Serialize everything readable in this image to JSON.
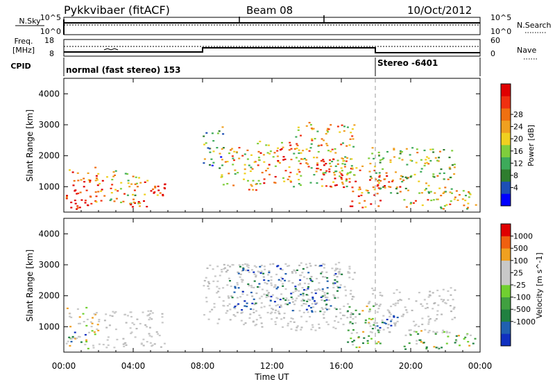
{
  "header": {
    "station": "Pykkvibaer (fitACF)",
    "beam": "Beam 08",
    "date": "10/Oct/2012"
  },
  "strips": {
    "nsky_label": "N.Sky",
    "nsky_ticks": [
      "10^5",
      "10^0"
    ],
    "nsearch_label": "N.Search",
    "nsearch_ticks": [
      "10^5",
      "10^0"
    ],
    "freq_label_1": "Freq.",
    "freq_label_2": "[MHz]",
    "freq_ticks": [
      "18",
      "8"
    ],
    "nave_label": "Nave",
    "nave_ticks": [
      "60",
      "0"
    ],
    "cpid_label": "CPID",
    "cpid_modes": [
      "normal (fast stereo) 153",
      "Stereo -6401"
    ]
  },
  "chart_data": [
    {
      "type": "heatmap",
      "title": "",
      "xlabel": "Time UT",
      "ylabel": "Slant Range [km]",
      "xticks": [
        "00:00",
        "04:00",
        "08:00",
        "12:00",
        "16:00",
        "20:00",
        "00:00"
      ],
      "xlim": [
        0,
        24
      ],
      "ylim": [
        180,
        4500
      ],
      "yticks": [
        1000,
        2000,
        3000,
        4000
      ],
      "colorbar": {
        "label": "Power [dB]",
        "ticks": [
          "4",
          "8",
          "12",
          "16",
          "20",
          "24",
          "28"
        ],
        "colors": [
          "#0000ff",
          "#1d4fb5",
          "#2e7d2e",
          "#3daa5a",
          "#7fce3c",
          "#f0d020",
          "#f0a020",
          "#f07010",
          "#f03010",
          "#e00000"
        ]
      },
      "echo_regions": [
        {
          "t0": 0.1,
          "t1": 2.2,
          "r0": 300,
          "r1": 1650,
          "level": 0.8
        },
        {
          "t0": 0.2,
          "t1": 1.6,
          "r0": 300,
          "r1": 700,
          "level": 0.95
        },
        {
          "t0": 2.2,
          "t1": 4.3,
          "r0": 450,
          "r1": 1550,
          "level": 0.55
        },
        {
          "t0": 3.8,
          "t1": 5.8,
          "r0": 350,
          "r1": 1300,
          "level": 0.85
        },
        {
          "t0": 8.0,
          "t1": 9.2,
          "r0": 1600,
          "r1": 3000,
          "level": 0.35
        },
        {
          "t0": 9.0,
          "t1": 11.2,
          "r0": 900,
          "r1": 2300,
          "level": 0.6
        },
        {
          "t0": 11.0,
          "t1": 13.2,
          "r0": 1100,
          "r1": 2600,
          "level": 0.7
        },
        {
          "t0": 13.2,
          "t1": 16.8,
          "r0": 1000,
          "r1": 3100,
          "level": 0.6
        },
        {
          "t0": 14.5,
          "t1": 16.3,
          "r0": 1000,
          "r1": 2000,
          "level": 0.85
        },
        {
          "t0": 16.2,
          "t1": 18.2,
          "r0": 350,
          "r1": 1700,
          "level": 0.75
        },
        {
          "t0": 17.5,
          "t1": 22.5,
          "r0": 800,
          "r1": 2300,
          "level": 0.5
        },
        {
          "t0": 18.0,
          "t1": 19.5,
          "r0": 900,
          "r1": 1400,
          "level": 0.85
        },
        {
          "t0": 19.5,
          "t1": 23.8,
          "r0": 300,
          "r1": 900,
          "level": 0.6
        }
      ]
    },
    {
      "type": "heatmap",
      "title": "",
      "xlabel": "Time UT",
      "ylabel": "Slant Range [km]",
      "xticks": [
        "00:00",
        "04:00",
        "08:00",
        "12:00",
        "16:00",
        "20:00",
        "00:00"
      ],
      "xlim": [
        0,
        24
      ],
      "ylim": [
        180,
        4500
      ],
      "yticks": [
        1000,
        2000,
        3000,
        4000
      ],
      "colorbar": {
        "label": "Velocity [m s^-1]",
        "ticks": [
          "1000",
          "500",
          "100",
          "25",
          "-25",
          "-100",
          "-500",
          "-1000"
        ],
        "colors": [
          "#1030c0",
          "#2060b0",
          "#208040",
          "#40a040",
          "#70d030",
          "#c8c8c8",
          "#c8c8c8",
          "#f0a020",
          "#f06010",
          "#e00000"
        ]
      },
      "velocity_regions": [
        {
          "t0": 0.1,
          "t1": 2.2,
          "r0": 300,
          "r1": 1650,
          "class": "mixed-ground"
        },
        {
          "t0": 0.2,
          "t1": 1.2,
          "r0": 500,
          "r1": 1000,
          "class": "toward"
        },
        {
          "t0": 2.2,
          "t1": 5.8,
          "r0": 350,
          "r1": 1550,
          "class": "ground"
        },
        {
          "t0": 8.0,
          "t1": 16.8,
          "r0": 900,
          "r1": 3100,
          "class": "ground"
        },
        {
          "t0": 9.5,
          "t1": 16.0,
          "r0": 1500,
          "r1": 3000,
          "class": "toward"
        },
        {
          "t0": 16.2,
          "t1": 18.2,
          "r0": 350,
          "r1": 1700,
          "class": "green"
        },
        {
          "t0": 17.5,
          "t1": 22.5,
          "r0": 800,
          "r1": 2300,
          "class": "ground"
        },
        {
          "t0": 18.0,
          "t1": 19.5,
          "r0": 900,
          "r1": 1400,
          "class": "toward"
        },
        {
          "t0": 19.5,
          "t1": 23.8,
          "r0": 300,
          "r1": 900,
          "class": "green"
        }
      ]
    }
  ]
}
